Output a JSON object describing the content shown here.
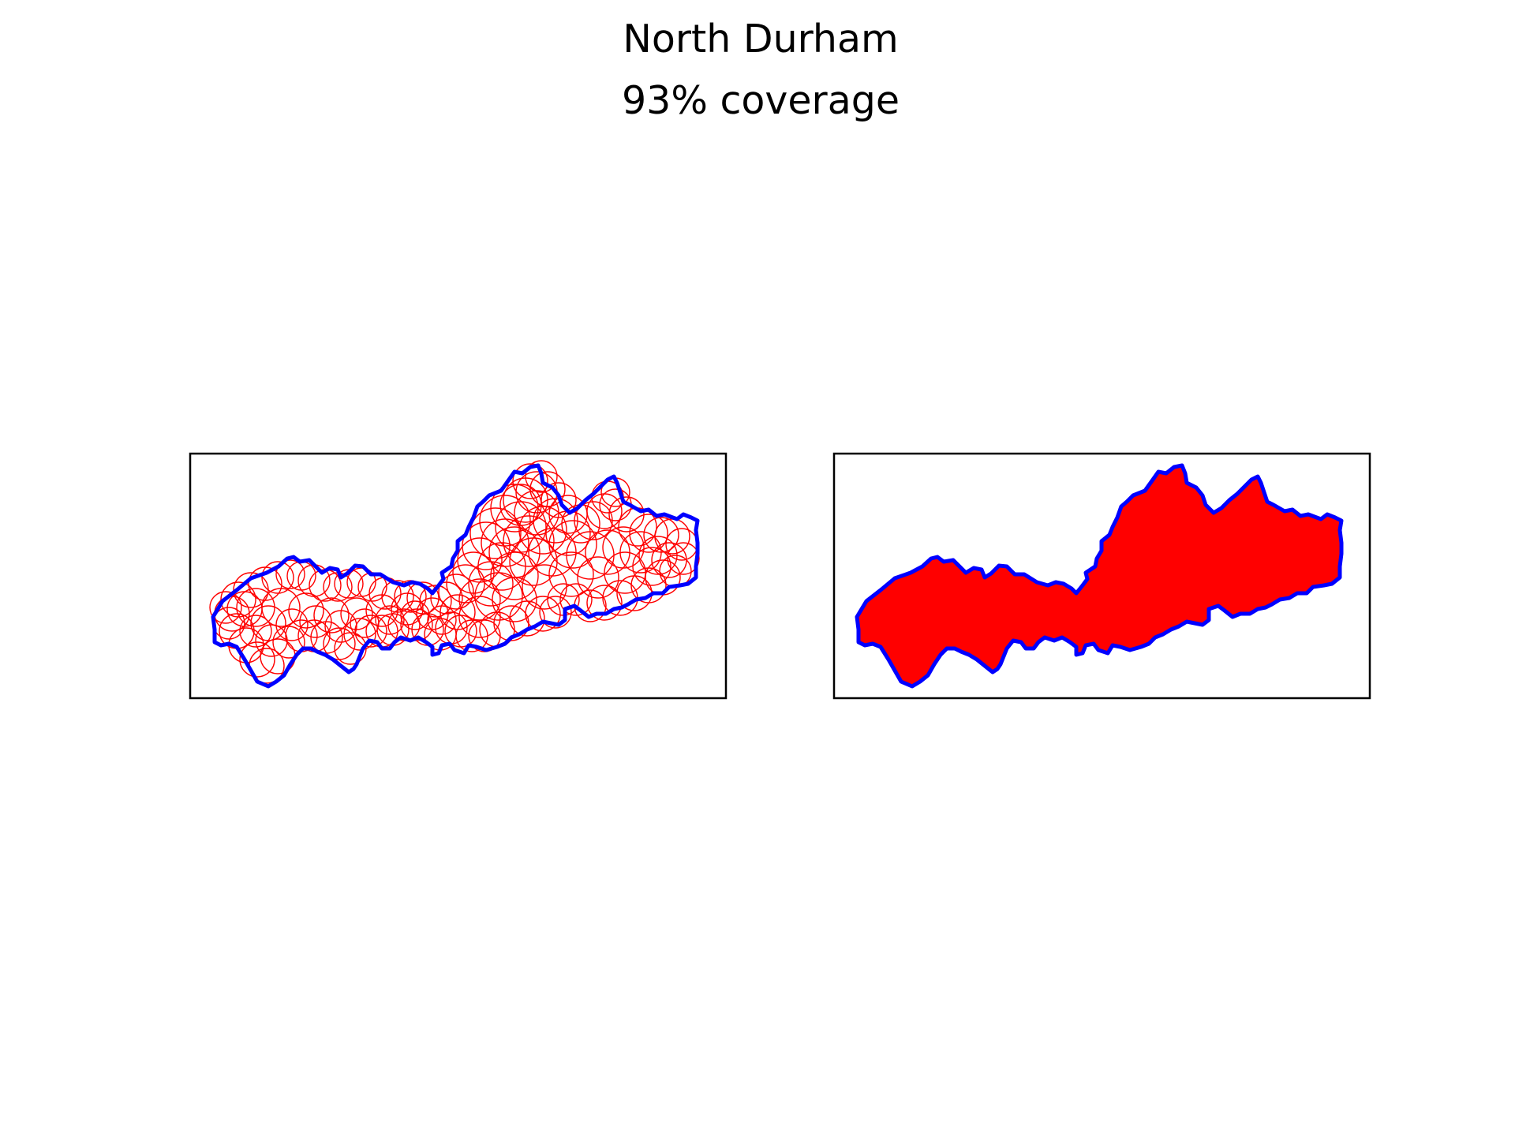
{
  "figure": {
    "title": "North Durham",
    "subtitle": "93% coverage"
  },
  "colors": {
    "boundary": "#0000ff",
    "coverage": "#ff0000",
    "frame": "#000000",
    "background": "#ffffff"
  },
  "panels": [
    {
      "name": "circle-coverage-panel",
      "style": "circle outlines"
    },
    {
      "name": "union-coverage-panel",
      "style": "filled union"
    }
  ],
  "coverage_fraction": 0.93
}
